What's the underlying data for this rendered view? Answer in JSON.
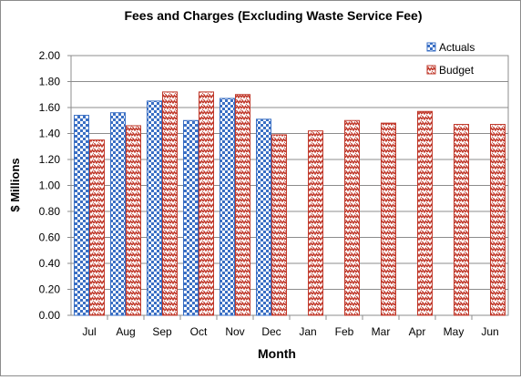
{
  "chart_data": {
    "type": "bar",
    "title": "Fees and Charges (Excluding  Waste Service Fee)",
    "xlabel": "Month",
    "ylabel": "$ Millions",
    "ylim": [
      0,
      2.0
    ],
    "yticks": [
      "0.00",
      "0.20",
      "0.40",
      "0.60",
      "0.80",
      "1.00",
      "1.20",
      "1.40",
      "1.60",
      "1.80",
      "2.00"
    ],
    "categories": [
      "Jul",
      "Aug",
      "Sep",
      "Oct",
      "Nov",
      "Dec",
      "Jan",
      "Feb",
      "Mar",
      "Apr",
      "May",
      "Jun"
    ],
    "grid": true,
    "legend_position": "top-right",
    "series": [
      {
        "name": "Actuals",
        "color": "#3a6fc4",
        "values": [
          1.54,
          1.56,
          1.65,
          1.5,
          1.67,
          1.51,
          null,
          null,
          null,
          null,
          null,
          null
        ]
      },
      {
        "name": "Budget",
        "color": "#c0392b",
        "values": [
          1.35,
          1.46,
          1.72,
          1.72,
          1.7,
          1.39,
          1.42,
          1.5,
          1.48,
          1.57,
          1.47,
          1.47
        ]
      }
    ]
  }
}
